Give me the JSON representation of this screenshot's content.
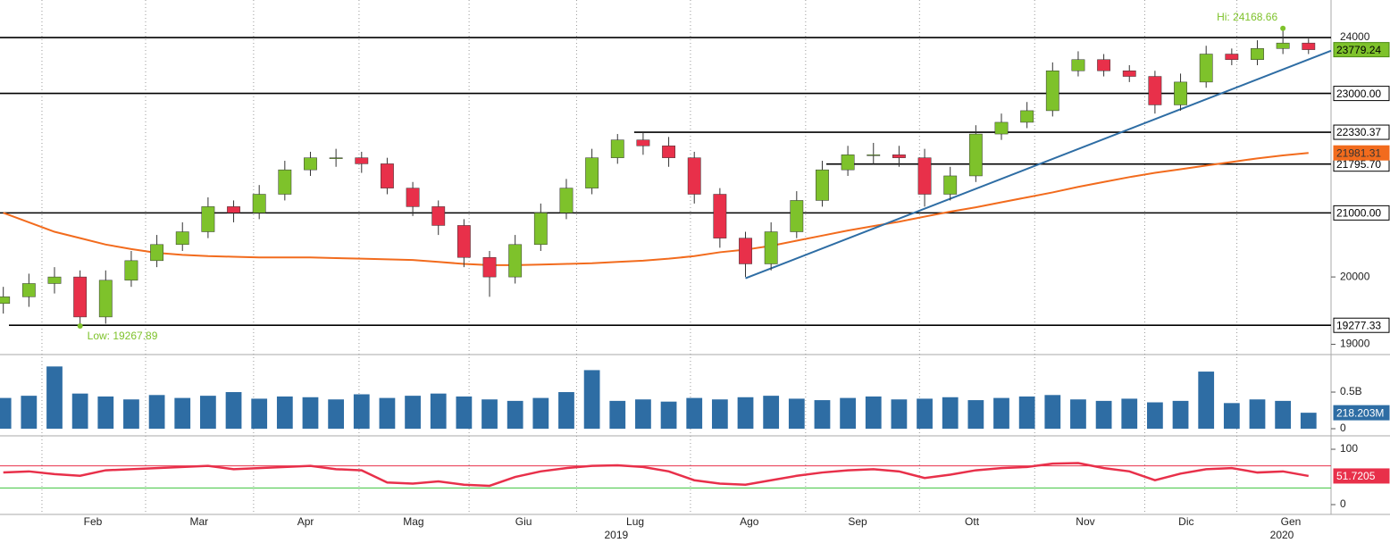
{
  "chart_data": [
    {
      "type": "candlestick",
      "x": [
        2,
        3,
        4,
        5,
        6,
        7,
        8,
        9,
        10,
        11,
        12,
        13,
        14,
        15,
        16,
        17,
        18,
        19,
        20,
        21,
        22,
        23,
        24,
        25,
        26,
        27,
        28,
        29,
        30,
        31,
        32,
        33,
        34,
        35,
        36,
        37,
        38,
        39,
        40,
        41,
        42,
        43,
        44,
        45,
        46,
        47,
        48,
        49,
        50,
        51,
        52,
        53
      ],
      "open": [
        19600,
        19700,
        19900,
        20000,
        19400,
        19950,
        20250,
        20500,
        20700,
        21100,
        21000,
        21300,
        21700,
        21900,
        21900,
        21800,
        21400,
        21100,
        20800,
        20300,
        20000,
        20500,
        21000,
        21400,
        21900,
        22200,
        22100,
        21900,
        21300,
        20600,
        20200,
        20700,
        21200,
        21700,
        21950,
        21950,
        21900,
        21300,
        21600,
        22300,
        22500,
        22700,
        23400,
        23600,
        23400,
        23300,
        22800,
        23200,
        23700,
        23600,
        23800,
        23900
      ],
      "high": [
        19850,
        20050,
        20150,
        20100,
        20100,
        20400,
        20650,
        20850,
        21250,
        21200,
        21450,
        21850,
        22000,
        22050,
        22000,
        21900,
        21500,
        21200,
        20900,
        20400,
        20650,
        21150,
        21550,
        22050,
        22300,
        22330.37,
        22250,
        22000,
        21400,
        20700,
        20850,
        21350,
        21850,
        22100,
        22150,
        22100,
        22050,
        21750,
        22450,
        22650,
        22850,
        23550,
        23750,
        23700,
        23500,
        23400,
        23350,
        23850,
        23800,
        23950,
        24168.66,
        23980
      ],
      "low": [
        19450,
        19550,
        19750,
        19267.89,
        19300,
        19850,
        20150,
        20400,
        20600,
        20850,
        20900,
        21200,
        21600,
        21750,
        21650,
        21300,
        20950,
        20650,
        20150,
        19700,
        19900,
        20400,
        20900,
        21300,
        21800,
        21950,
        21750,
        21150,
        20450,
        20000,
        20100,
        20600,
        21100,
        21600,
        21795.7,
        21750,
        21100,
        21200,
        21500,
        22200,
        22400,
        22600,
        23300,
        23300,
        23200,
        22650,
        22700,
        23100,
        23500,
        23500,
        23700,
        23700
      ],
      "close": [
        19700,
        19900,
        20000,
        19400,
        19950,
        20250,
        20500,
        20700,
        21100,
        21000,
        21300,
        21700,
        21900,
        21900,
        21800,
        21400,
        21100,
        20800,
        20300,
        20000,
        20500,
        21000,
        21400,
        21900,
        22200,
        22100,
        21900,
        21300,
        20600,
        20200,
        20700,
        21200,
        21700,
        21950,
        21950,
        21900,
        21300,
        21600,
        22300,
        22500,
        22700,
        23400,
        23600,
        23400,
        23300,
        22800,
        23200,
        23700,
        23600,
        23800,
        23900,
        23779.24
      ],
      "last_close_label": "23779.24",
      "up_color": "#7ec22b",
      "down_color": "#e8304a",
      "ma": {
        "color": "#f26b1d",
        "values": [
          21000,
          20850,
          20700,
          20600,
          20500,
          20430,
          20370,
          20340,
          20320,
          20310,
          20300,
          20300,
          20300,
          20290,
          20280,
          20270,
          20260,
          20230,
          20200,
          20180,
          20180,
          20190,
          20200,
          20210,
          20230,
          20250,
          20280,
          20320,
          20380,
          20420,
          20480,
          20560,
          20640,
          20720,
          20790,
          20860,
          20940,
          21020,
          21090,
          21170,
          21250,
          21330,
          21420,
          21500,
          21580,
          21650,
          21710,
          21770,
          21830,
          21890,
          21940,
          21981.31
        ],
        "last_label": "21981.31"
      },
      "trendline": {
        "color": "#2e6da4",
        "x": [
          31,
          53.88
        ],
        "y": [
          19980,
          23760
        ]
      },
      "levels": [
        {
          "value": 24000,
          "label": "24000",
          "start": 1.871,
          "boxed": false
        },
        {
          "value": 23000,
          "label": "23000.00",
          "start": 1.871,
          "boxed": true
        },
        {
          "value": 22330.37,
          "label": "22330.37",
          "start": 26.65,
          "boxed": true
        },
        {
          "value": 21795.7,
          "label": "21795.70",
          "start": 34.16,
          "boxed": true
        },
        {
          "value": 21000,
          "label": "21000.00",
          "start": 1.871,
          "boxed": true
        },
        {
          "value": 19277.33,
          "label": "19277.33",
          "start": 2.22,
          "boxed": true
        }
      ],
      "annotations": [
        {
          "text": "Hi: 24168.66",
          "x": 52,
          "value": 24168.66
        },
        {
          "text": "Low: 19267.89",
          "x": 5,
          "value": 19267.89
        }
      ],
      "log_scale": true,
      "ylim": [
        18878,
        24696
      ],
      "yticks": [
        19000,
        20000
      ],
      "xlim": [
        1.871,
        53.88
      ],
      "xticks": [
        {
          "value": 5.5,
          "label": "Feb"
        },
        {
          "value": 9.65,
          "label": "Mar"
        },
        {
          "value": 13.81,
          "label": "Apr"
        },
        {
          "value": 18.03,
          "label": "Mag"
        },
        {
          "value": 22.33,
          "label": "Giu"
        },
        {
          "value": 26.69,
          "label": "Lug"
        },
        {
          "value": 31.15,
          "label": "Ago"
        },
        {
          "value": 35.38,
          "label": "Sep"
        },
        {
          "value": 39.85,
          "label": "Ott"
        },
        {
          "value": 44.28,
          "label": "Nov"
        },
        {
          "value": 48.22,
          "label": "Dic"
        },
        {
          "value": 52.31,
          "label": "Gen"
        }
      ],
      "xgrid": [
        3.51,
        7.56,
        11.78,
        15.9,
        20.2,
        24.4,
        28.85,
        33.35,
        37.8,
        42.3,
        46.6,
        50.2
      ],
      "year_ticks": [
        {
          "value": 25.95,
          "label": "2019"
        },
        {
          "value": 51.96,
          "label": "2020"
        }
      ]
    },
    {
      "type": "bar",
      "color": "#2e6da4",
      "x": [
        2,
        3,
        4,
        5,
        6,
        7,
        8,
        9,
        10,
        11,
        12,
        13,
        14,
        15,
        16,
        17,
        18,
        19,
        20,
        21,
        22,
        23,
        24,
        25,
        26,
        27,
        28,
        29,
        30,
        31,
        32,
        33,
        34,
        35,
        36,
        37,
        38,
        39,
        40,
        41,
        42,
        43,
        44,
        45,
        46,
        47,
        48,
        49,
        50,
        51,
        52,
        53
      ],
      "values": [
        0.42,
        0.45,
        0.85,
        0.48,
        0.44,
        0.4,
        0.46,
        0.42,
        0.45,
        0.5,
        0.41,
        0.44,
        0.43,
        0.4,
        0.47,
        0.42,
        0.45,
        0.48,
        0.44,
        0.4,
        0.38,
        0.42,
        0.5,
        0.8,
        0.38,
        0.4,
        0.37,
        0.42,
        0.4,
        0.43,
        0.45,
        0.41,
        0.39,
        0.42,
        0.44,
        0.4,
        0.41,
        0.43,
        0.39,
        0.42,
        0.44,
        0.46,
        0.4,
        0.38,
        0.41,
        0.36,
        0.38,
        0.78,
        0.35,
        0.4,
        0.38,
        0.218203
      ],
      "last_label": "218.203M",
      "ylim": [
        -0.085,
        0.976
      ],
      "yticks": [
        0,
        {
          "value": 0.5,
          "label": "0.5B"
        }
      ]
    },
    {
      "type": "line",
      "color": "#e8304a",
      "x": [
        2,
        3,
        4,
        5,
        6,
        7,
        8,
        9,
        10,
        11,
        12,
        13,
        14,
        15,
        16,
        17,
        18,
        19,
        20,
        21,
        22,
        23,
        24,
        25,
        26,
        27,
        28,
        29,
        30,
        31,
        32,
        33,
        34,
        35,
        36,
        37,
        38,
        39,
        40,
        41,
        42,
        43,
        44,
        45,
        46,
        47,
        48,
        49,
        50,
        51,
        52,
        53
      ],
      "values": [
        58,
        60,
        55,
        52,
        62,
        64,
        66,
        68,
        70,
        64,
        66,
        68,
        70,
        64,
        62,
        40,
        38,
        42,
        36,
        34,
        50,
        60,
        66,
        70,
        71,
        68,
        60,
        44,
        38,
        36,
        44,
        52,
        58,
        62,
        64,
        60,
        48,
        54,
        62,
        66,
        68,
        74,
        75,
        66,
        60,
        44,
        56,
        64,
        66,
        58,
        60,
        51.7205
      ],
      "last_label": "51.7205",
      "bands": [
        {
          "value": 70,
          "color": "#e8304a"
        },
        {
          "value": 30,
          "color": "#3ec43e"
        }
      ],
      "ylim": [
        -16.1,
        121
      ],
      "yticks": [
        0,
        100
      ]
    }
  ]
}
